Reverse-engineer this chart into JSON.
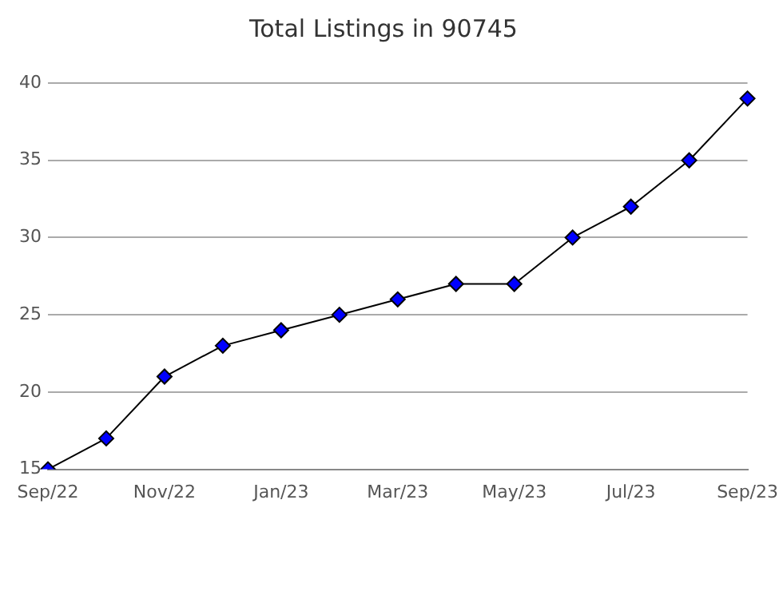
{
  "chart_data": {
    "type": "line",
    "title": "Total Listings in 90745",
    "categories": [
      "Sep/22",
      null,
      "Nov/22",
      null,
      "Jan/23",
      null,
      "Mar/23",
      null,
      "May/23",
      null,
      "Jul/23",
      null,
      "Sep/23"
    ],
    "series": [
      {
        "color": "#0000ff",
        "values": [
          15,
          17,
          21,
          23,
          24,
          25,
          26,
          27,
          27,
          30,
          32,
          35,
          39
        ]
      }
    ],
    "ylim": [
      15,
      40
    ],
    "yticks": [
      15,
      20,
      25,
      30,
      35,
      40
    ],
    "grid": "y",
    "legend": false,
    "marker": "diamond",
    "line_style": "solid"
  }
}
